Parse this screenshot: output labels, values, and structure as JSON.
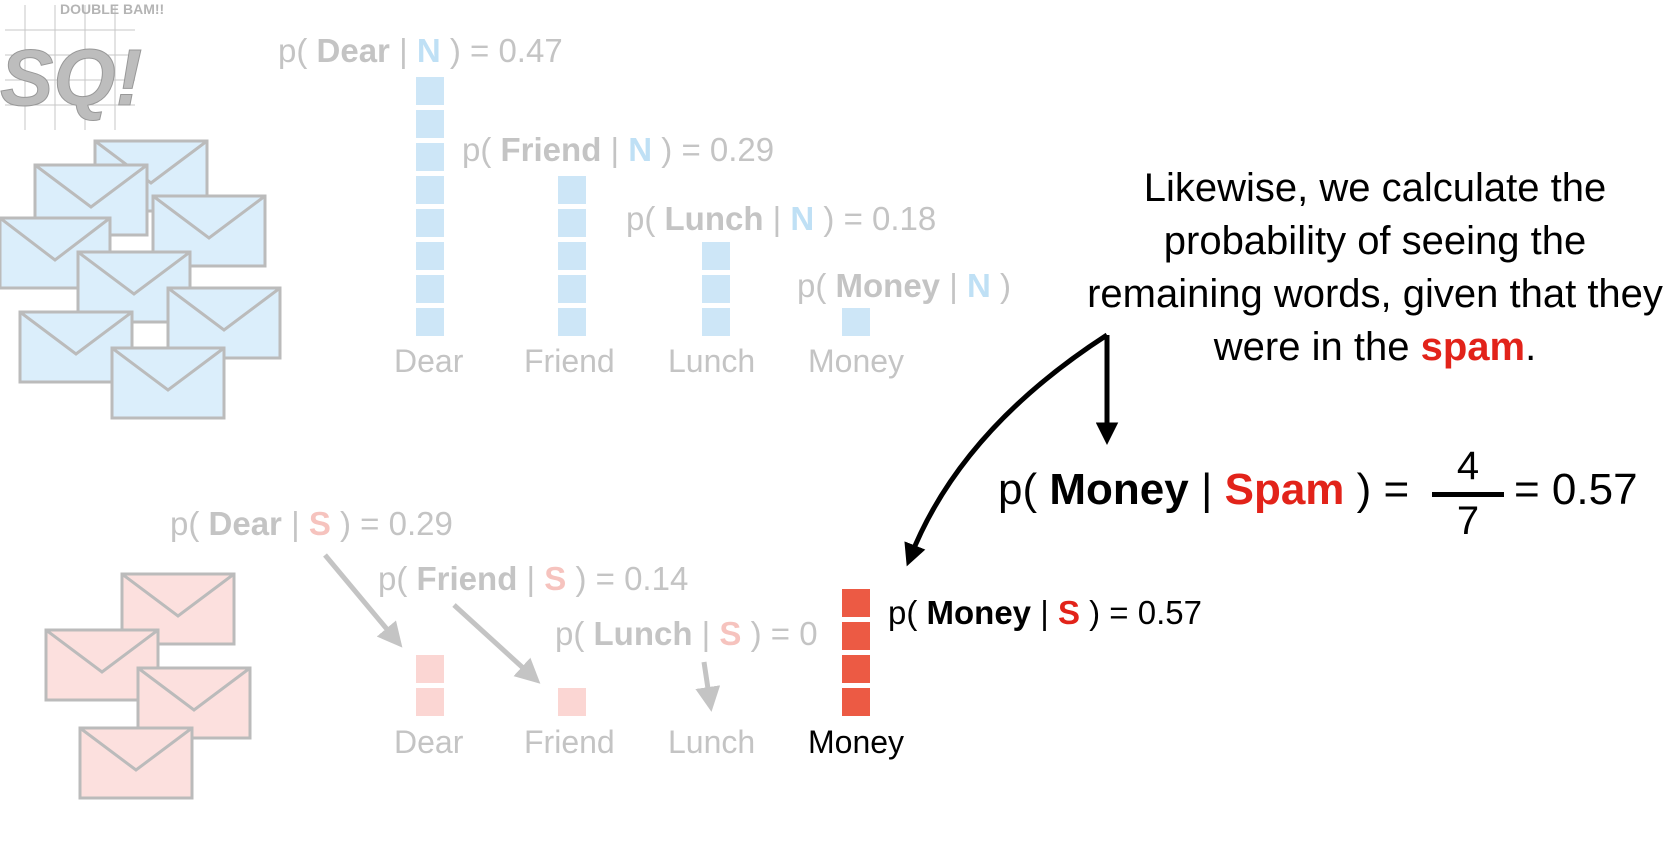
{
  "normal_probs": [
    {
      "prefix": "p( ",
      "word": "Dear",
      "sep": " | ",
      "cls": "N",
      "suffix": " ) = 0.47"
    },
    {
      "prefix": "p( ",
      "word": "Friend",
      "sep": " | ",
      "cls": "N",
      "suffix": " ) = 0.29"
    },
    {
      "prefix": "p( ",
      "word": "Lunch",
      "sep": " | ",
      "cls": "N",
      "suffix": " ) = 0.18"
    },
    {
      "prefix": "p( ",
      "word": "Money",
      "sep": " | ",
      "cls": "N",
      "suffix": " )"
    }
  ],
  "normal_words": [
    "Dear",
    "Friend",
    "Lunch",
    "Money"
  ],
  "normal_counts": [
    8,
    5,
    3,
    1
  ],
  "spam_probs": [
    {
      "prefix": "p( ",
      "word": "Dear",
      "sep": " | ",
      "cls": "S",
      "suffix": " ) = 0.29"
    },
    {
      "prefix": "p( ",
      "word": "Friend",
      "sep": " | ",
      "cls": "S",
      "suffix": " ) = 0.14"
    },
    {
      "prefix": "p( ",
      "word": "Lunch",
      "sep": " | ",
      "cls": "S",
      "suffix": " ) = 0"
    },
    {
      "prefix": "p( ",
      "word": "Money",
      "sep": " | ",
      "cls": "S",
      "suffix": " ) = 0.57"
    }
  ],
  "spam_words": [
    "Dear",
    "Friend",
    "Lunch",
    "Money"
  ],
  "spam_counts": [
    2,
    1,
    0,
    4
  ],
  "callout": {
    "text_before": "Likewise, we calculate the probability of seeing the remaining words, given that they were in the ",
    "highlight": "spam",
    "text_after": "."
  },
  "equation": {
    "prefix": "p( ",
    "word": "Money",
    "sep": " | ",
    "cls": "Spam",
    "middle": " ) =",
    "numerator": "4",
    "denominator": "7",
    "result": "= 0.57"
  },
  "logo": {
    "top_text": "DOUBLE BAM!!",
    "letters": "SQ!"
  },
  "colors": {
    "normal_bar": "#cde6f7",
    "normal_envelope": "#dbeefb",
    "spam_bar_faded": "#fbd6d3",
    "spam_bar_active": "#ec5a44",
    "spam_envelope": "#fce0de",
    "spam_text": "#e2231a",
    "faded_text": "#c4c4c4"
  }
}
